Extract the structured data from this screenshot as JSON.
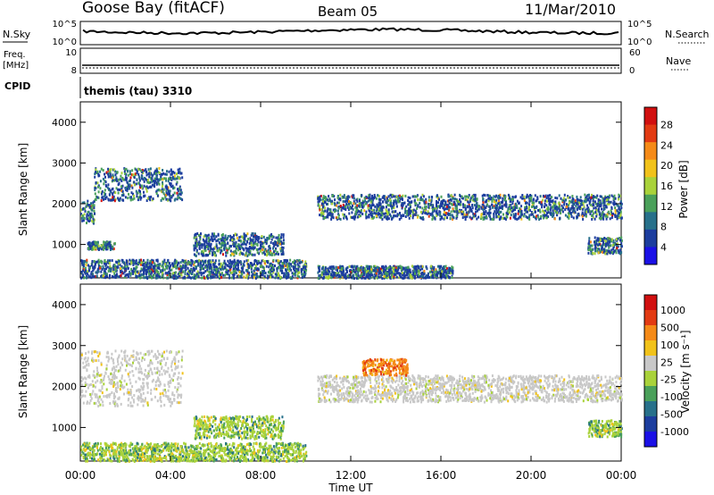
{
  "header": {
    "station": "Goose Bay (fitACF)",
    "beam": "Beam 05",
    "date": "11/Mar/2010"
  },
  "top_panels": {
    "nsky_label": "N.Sky",
    "nsky_ticks": [
      "10^5",
      "10^0"
    ],
    "nsearch_label": "N.Search",
    "nsearch_ticks": [
      "10^5",
      "10^0"
    ],
    "freq_label": "Freq.",
    "freq_unit": "[MHz]",
    "freq_ticks": [
      "10",
      "8"
    ],
    "nave_label": "Nave",
    "nave_ticks": [
      "60",
      "0"
    ],
    "cpid_label": "CPID",
    "cpid_value": "themis (tau) 3310"
  },
  "chart_data": [
    {
      "type": "heatmap",
      "name": "power",
      "ylabel": "Slant Range [km]",
      "xlabel": "",
      "ylim": [
        180,
        4500
      ],
      "xlim_hours": [
        0,
        24
      ],
      "yticks": [
        "1000",
        "2000",
        "3000",
        "4000"
      ],
      "colorbar": {
        "label": "Power [dB]",
        "ticks": [
          "4",
          "8",
          "12",
          "16",
          "20",
          "24",
          "28"
        ],
        "colors": [
          "#1a10e6",
          "#1c3d9e",
          "#27708a",
          "#4aa05a",
          "#a9d23a",
          "#f1c21a",
          "#f58a17",
          "#e23a12",
          "#d10f0f"
        ]
      },
      "bands": [
        {
          "t0": 0.0,
          "t1": 0.6,
          "r0": 1550,
          "r1": 2100
        },
        {
          "t0": 0.6,
          "t1": 4.5,
          "r0": 2100,
          "r1": 2900
        },
        {
          "t0": 0.0,
          "t1": 10.0,
          "r0": 200,
          "r1": 650
        },
        {
          "t0": 0.3,
          "t1": 1.5,
          "r0": 900,
          "r1": 1100
        },
        {
          "t0": 5.0,
          "t1": 9.0,
          "r0": 750,
          "r1": 1300
        },
        {
          "t0": 10.5,
          "t1": 24.0,
          "r0": 1650,
          "r1": 2250
        },
        {
          "t0": 10.5,
          "t1": 16.5,
          "r0": 200,
          "r1": 500
        },
        {
          "t0": 22.5,
          "t1": 24.0,
          "r0": 800,
          "r1": 1200
        }
      ]
    },
    {
      "type": "heatmap",
      "name": "velocity",
      "ylabel": "Slant Range [km]",
      "xlabel": "Time UT",
      "ylim": [
        180,
        4500
      ],
      "xlim_hours": [
        0,
        24
      ],
      "yticks": [
        "1000",
        "2000",
        "3000",
        "4000"
      ],
      "xticks": [
        "00:00",
        "04:00",
        "08:00",
        "12:00",
        "16:00",
        "20:00",
        "00:00"
      ],
      "colorbar": {
        "label": "Velocity [m s⁻¹]",
        "ticks": [
          "1000",
          "500",
          "100",
          "25",
          "-25",
          "-100",
          "-500",
          "-1000"
        ],
        "colors": [
          "#1a10e6",
          "#1c3d9e",
          "#27708a",
          "#4aa05a",
          "#a9d23a",
          "#c8c8c8",
          "#f1c21a",
          "#f58a17",
          "#e23a12",
          "#d10f0f"
        ]
      },
      "bands": [
        {
          "t0": 0.0,
          "t1": 4.5,
          "r0": 1550,
          "r1": 2900,
          "tone": "gray"
        },
        {
          "t0": 0.0,
          "t1": 10.0,
          "r0": 200,
          "r1": 650,
          "tone": "green"
        },
        {
          "t0": 5.0,
          "t1": 9.0,
          "r0": 750,
          "r1": 1300,
          "tone": "green"
        },
        {
          "t0": 10.5,
          "t1": 24.0,
          "r0": 1650,
          "r1": 2300,
          "tone": "gray"
        },
        {
          "t0": 12.5,
          "t1": 14.5,
          "r0": 2300,
          "r1": 2700,
          "tone": "orange"
        },
        {
          "t0": 22.5,
          "t1": 24.0,
          "r0": 800,
          "r1": 1200,
          "tone": "green"
        }
      ]
    }
  ]
}
